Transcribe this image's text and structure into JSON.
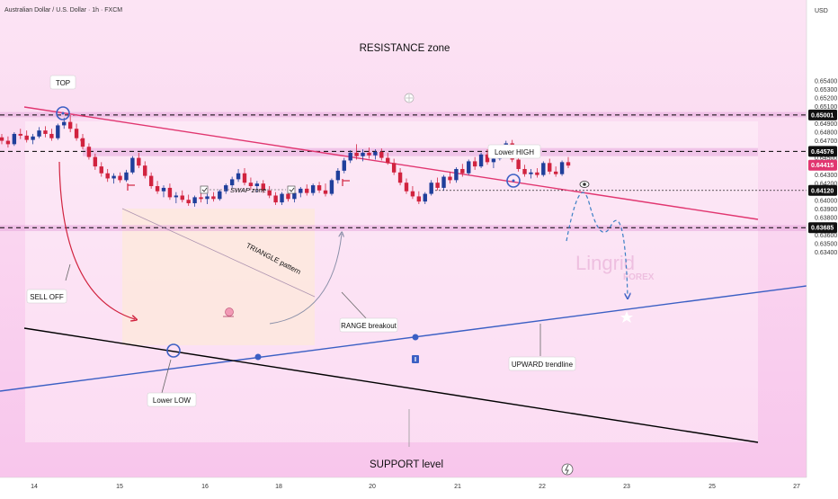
{
  "header": {
    "symbol_title": "Australian Dollar / U.S. Dollar · 1h · FXCM",
    "currency": "USD"
  },
  "colors": {
    "bg_top": "#fce4f4",
    "bg_bottom": "#f8c6ec",
    "up_candle": "#1f3f9b",
    "down_candle": "#d1233f",
    "resistance_line": "#e13670",
    "upward_trendline": "#3b5fc4",
    "support_line": "#000000",
    "dashed_level": "#000000",
    "zone_fill": "#e6a8dc"
  },
  "chart_data": {
    "type": "candlestick",
    "symbol": "AUDUSD",
    "interval": "1h",
    "x_ticks": [
      "14",
      "15",
      "16",
      "18",
      "20",
      "21",
      "22",
      "23",
      "25",
      "27"
    ],
    "y_ticks": [
      "0.65400",
      "0.65300",
      "0.65200",
      "0.65100",
      "0.65001",
      "0.64900",
      "0.64800",
      "0.64700",
      "0.64576",
      "0.64500",
      "0.64415",
      "0.64300",
      "0.64200",
      "0.64120",
      "0.64000",
      "0.63900",
      "0.63800",
      "0.63685",
      "0.63600",
      "0.63500",
      "0.63400"
    ],
    "ylim": [
      0.6337,
      0.6547
    ],
    "price_labels": [
      {
        "value": 0.65001,
        "text": "0.65001",
        "style": "dashed"
      },
      {
        "value": 0.64576,
        "text": "0.64576",
        "style": "dashed"
      },
      {
        "value": 0.64415,
        "text": "0.64415",
        "style": "last-price"
      },
      {
        "value": 0.6412,
        "text": "0.64120",
        "style": "dotted"
      },
      {
        "value": 0.63685,
        "text": "0.63685",
        "style": "dashed"
      }
    ],
    "zones": [
      {
        "name": "RESISTANCE zone",
        "from": 0.64975,
        "to": 0.65035
      },
      {
        "name": "SWAP zone",
        "from": 0.6452,
        "to": 0.64615
      },
      {
        "name": "SUPPORT level",
        "from": 0.63645,
        "to": 0.63715
      }
    ],
    "annotations": [
      "RESISTANCE zone",
      "TOP",
      "SWAP zone",
      "TRIANGLE pattern",
      "Lower HIGH",
      "SELL OFF",
      "RANGE breakout",
      "Lower LOW",
      "UPWARD trendline",
      "SUPPORT level"
    ],
    "watermark": {
      "name": "Lingrid",
      "sub": "FOREX"
    }
  },
  "candles": [
    [
      0.6474,
      0.6478,
      0.6466,
      0.647
    ],
    [
      0.647,
      0.6475,
      0.6462,
      0.6466
    ],
    [
      0.6466,
      0.648,
      0.6464,
      0.6478
    ],
    [
      0.6478,
      0.6484,
      0.6472,
      0.6476
    ],
    [
      0.6476,
      0.6482,
      0.6468,
      0.6471
    ],
    [
      0.6471,
      0.6478,
      0.6466,
      0.6475
    ],
    [
      0.6475,
      0.6486,
      0.6473,
      0.6482
    ],
    [
      0.6482,
      0.6487,
      0.6474,
      0.6478
    ],
    [
      0.6478,
      0.6484,
      0.647,
      0.6473
    ],
    [
      0.6473,
      0.649,
      0.6471,
      0.6488
    ],
    [
      0.6488,
      0.6497,
      0.6484,
      0.6492
    ],
    [
      0.6492,
      0.65,
      0.648,
      0.6484
    ],
    [
      0.6484,
      0.649,
      0.647,
      0.6473
    ],
    [
      0.6473,
      0.6478,
      0.646,
      0.6463
    ],
    [
      0.6463,
      0.6467,
      0.6448,
      0.6451
    ],
    [
      0.6451,
      0.6455,
      0.6436,
      0.644
    ],
    [
      0.644,
      0.6445,
      0.6428,
      0.6432
    ],
    [
      0.6432,
      0.6437,
      0.6422,
      0.6426
    ],
    [
      0.6426,
      0.6432,
      0.642,
      0.6429
    ],
    [
      0.6429,
      0.6433,
      0.6421,
      0.6424
    ],
    [
      0.6424,
      0.6436,
      0.6422,
      0.6433
    ],
    [
      0.6433,
      0.6452,
      0.6431,
      0.645
    ],
    [
      0.645,
      0.6456,
      0.6438,
      0.6441
    ],
    [
      0.6441,
      0.6446,
      0.6426,
      0.6429
    ],
    [
      0.6429,
      0.6433,
      0.6414,
      0.6417
    ],
    [
      0.6417,
      0.6423,
      0.6408,
      0.6411
    ],
    [
      0.6411,
      0.6418,
      0.6404,
      0.6415
    ],
    [
      0.6415,
      0.642,
      0.6401,
      0.6404
    ],
    [
      0.6404,
      0.641,
      0.6397,
      0.6406
    ],
    [
      0.6406,
      0.6412,
      0.6398,
      0.6401
    ],
    [
      0.6401,
      0.6407,
      0.6394,
      0.6397
    ],
    [
      0.6397,
      0.6406,
      0.6393,
      0.6404
    ],
    [
      0.6404,
      0.6409,
      0.6398,
      0.6402
    ],
    [
      0.6402,
      0.6408,
      0.6396,
      0.6405
    ],
    [
      0.6405,
      0.641,
      0.6399,
      0.6402
    ],
    [
      0.6402,
      0.6413,
      0.64,
      0.6411
    ],
    [
      0.6411,
      0.642,
      0.6408,
      0.6418
    ],
    [
      0.6418,
      0.6428,
      0.6415,
      0.6425
    ],
    [
      0.6425,
      0.6437,
      0.6422,
      0.6432
    ],
    [
      0.6432,
      0.6438,
      0.6418,
      0.6421
    ],
    [
      0.6421,
      0.6427,
      0.6413,
      0.6417
    ],
    [
      0.6417,
      0.6423,
      0.641,
      0.642
    ],
    [
      0.642,
      0.6424,
      0.6409,
      0.6412
    ],
    [
      0.6412,
      0.6417,
      0.6403,
      0.6406
    ],
    [
      0.6406,
      0.641,
      0.6395,
      0.6398
    ],
    [
      0.6398,
      0.641,
      0.6395,
      0.6408
    ],
    [
      0.6408,
      0.6412,
      0.6399,
      0.6402
    ],
    [
      0.6402,
      0.6411,
      0.6398,
      0.6409
    ],
    [
      0.6409,
      0.6416,
      0.6404,
      0.6414
    ],
    [
      0.6414,
      0.6419,
      0.6406,
      0.6409
    ],
    [
      0.6409,
      0.642,
      0.6406,
      0.6418
    ],
    [
      0.6418,
      0.6422,
      0.6409,
      0.6412
    ],
    [
      0.6412,
      0.642,
      0.6405,
      0.6408
    ],
    [
      0.6408,
      0.6426,
      0.6406,
      0.6424
    ],
    [
      0.6424,
      0.6438,
      0.642,
      0.6435
    ],
    [
      0.6435,
      0.645,
      0.6432,
      0.6447
    ],
    [
      0.6447,
      0.6459,
      0.6444,
      0.6456
    ],
    [
      0.6456,
      0.6466,
      0.6448,
      0.6452
    ],
    [
      0.6452,
      0.646,
      0.6446,
      0.6456
    ],
    [
      0.6456,
      0.6462,
      0.6449,
      0.6453
    ],
    [
      0.6453,
      0.646,
      0.6448,
      0.6457
    ],
    [
      0.6457,
      0.6461,
      0.6447,
      0.645
    ],
    [
      0.645,
      0.6456,
      0.6442,
      0.6444
    ],
    [
      0.6444,
      0.6449,
      0.643,
      0.6433
    ],
    [
      0.6433,
      0.6438,
      0.6418,
      0.6421
    ],
    [
      0.6421,
      0.6426,
      0.6408,
      0.6411
    ],
    [
      0.6411,
      0.6417,
      0.6402,
      0.6405
    ],
    [
      0.6405,
      0.6411,
      0.6396,
      0.6399
    ],
    [
      0.6399,
      0.641,
      0.6396,
      0.6408
    ],
    [
      0.6408,
      0.6424,
      0.6406,
      0.6421
    ],
    [
      0.6421,
      0.6427,
      0.6412,
      0.6415
    ],
    [
      0.6415,
      0.643,
      0.6412,
      0.6428
    ],
    [
      0.6428,
      0.6434,
      0.642,
      0.6424
    ],
    [
      0.6424,
      0.6439,
      0.6421,
      0.6437
    ],
    [
      0.6437,
      0.6443,
      0.6428,
      0.6432
    ],
    [
      0.6432,
      0.6448,
      0.643,
      0.6446
    ],
    [
      0.6446,
      0.6451,
      0.6436,
      0.644
    ],
    [
      0.644,
      0.6456,
      0.6438,
      0.6454
    ],
    [
      0.6454,
      0.646,
      0.6442,
      0.6445
    ],
    [
      0.6445,
      0.6452,
      0.6438,
      0.6449
    ],
    [
      0.6449,
      0.6463,
      0.6447,
      0.6461
    ],
    [
      0.6461,
      0.647,
      0.6455,
      0.6467
    ],
    [
      0.6467,
      0.6471,
      0.6445,
      0.6448
    ],
    [
      0.6448,
      0.6452,
      0.6434,
      0.6437
    ],
    [
      0.6437,
      0.6442,
      0.6428,
      0.6431
    ],
    [
      0.6431,
      0.6437,
      0.6426,
      0.6433
    ],
    [
      0.6433,
      0.6438,
      0.6427,
      0.643
    ],
    [
      0.643,
      0.6446,
      0.6428,
      0.6444
    ],
    [
      0.6444,
      0.6449,
      0.6431,
      0.6434
    ],
    [
      0.6434,
      0.644,
      0.6428,
      0.6431
    ],
    [
      0.6431,
      0.6447,
      0.6429,
      0.6445
    ],
    [
      0.6445,
      0.6451,
      0.6438,
      0.6441
    ]
  ]
}
